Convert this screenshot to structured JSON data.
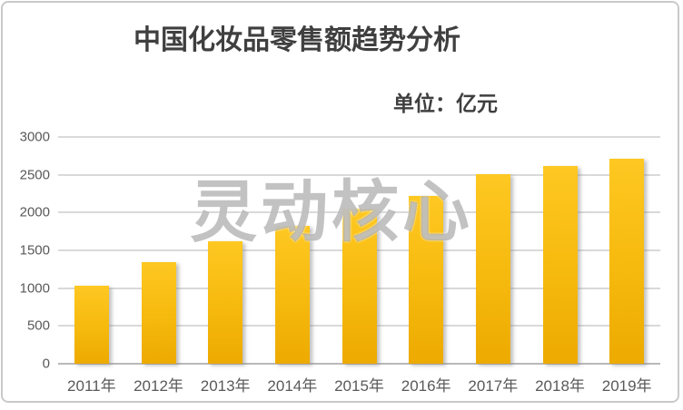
{
  "chart_data": {
    "type": "bar",
    "title": "中国化妆品零售额趋势分析",
    "unit_label": "单位：亿元",
    "watermark": "灵动核心",
    "categories": [
      "2011年",
      "2012年",
      "2013年",
      "2014年",
      "2015年",
      "2016年",
      "2017年",
      "2018年",
      "2019年"
    ],
    "values": [
      1030,
      1340,
      1625,
      1825,
      2049,
      2222,
      2514,
      2619,
      2708
    ],
    "xlabel": "",
    "ylabel": "",
    "ylim": [
      0,
      3000
    ],
    "yticks": [
      0,
      500,
      1000,
      1500,
      2000,
      2500,
      3000
    ],
    "grid": true,
    "legend": "none",
    "colors": {
      "bar_top": "#fec822",
      "bar_bottom": "#edaa00",
      "gridline": "#d9d9d9",
      "axis_text": "#595959",
      "title_text": "#3f3f3f",
      "watermark_gray": "#808080",
      "frame_border": "#c9c9c9"
    }
  }
}
